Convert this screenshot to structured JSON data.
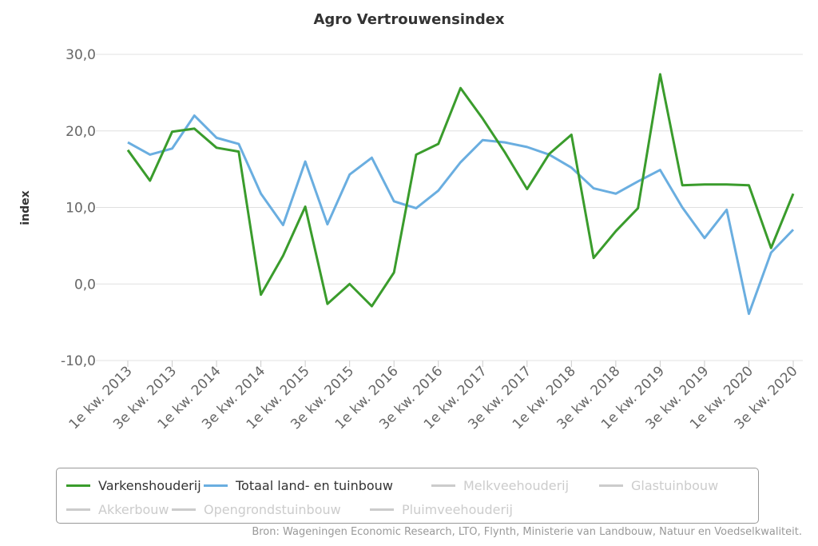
{
  "chart_data": {
    "type": "line",
    "title": "Agro Vertrouwensindex",
    "ylabel": "index",
    "xlabel": "",
    "ylim": [
      -10,
      30
    ],
    "yticks": [
      "30,0",
      "20,0",
      "10,0",
      "0,0",
      "-10,0"
    ],
    "ytick_values": [
      30,
      20,
      10,
      0,
      -10
    ],
    "grid": true,
    "x_tick_labels": [
      "1e kw. 2013",
      "3e kw. 2013",
      "1e kw. 2014",
      "3e kw. 2014",
      "1e kw. 2015",
      "3e kw. 2015",
      "1e kw. 2016",
      "3e kw. 2016",
      "1e kw. 2017",
      "3e kw. 2017",
      "1e kw. 2018",
      "3e kw. 2018",
      "1e kw. 2019",
      "3e kw. 2019",
      "1e kw. 2020",
      "3e kw. 2020"
    ],
    "n_points": 31,
    "series": [
      {
        "name": "Varkenshouderij",
        "color": "#3a9c2c",
        "visible": true,
        "values": [
          17.5,
          13.5,
          19.9,
          20.3,
          17.8,
          17.3,
          -1.4,
          3.7,
          10.1,
          -2.6,
          0.0,
          -2.9,
          1.5,
          16.9,
          18.3,
          25.6,
          21.6,
          17.2,
          12.4,
          17.0,
          19.5,
          3.4,
          6.9,
          9.9,
          27.4,
          12.9,
          13.0,
          13.0,
          12.9,
          4.7,
          11.8
        ]
      },
      {
        "name": "Totaal land- en tuinbouw",
        "color": "#6aaee0",
        "visible": true,
        "values": [
          18.5,
          16.9,
          17.7,
          22.0,
          19.1,
          18.3,
          11.8,
          7.7,
          16.0,
          7.8,
          14.3,
          16.5,
          10.8,
          9.9,
          12.2,
          15.9,
          18.8,
          18.5,
          17.9,
          16.9,
          15.2,
          12.5,
          11.8,
          13.4,
          14.9,
          10.0,
          6.0,
          9.7,
          -3.9,
          4.1,
          7.1
        ]
      },
      {
        "name": "Melkveehouderij",
        "color": "#cccccc",
        "visible": false
      },
      {
        "name": "Glastuinbouw",
        "color": "#cccccc",
        "visible": false
      },
      {
        "name": "Akkerbouw",
        "color": "#cccccc",
        "visible": false
      },
      {
        "name": "Opengrondstuinbouw",
        "color": "#cccccc",
        "visible": false
      },
      {
        "name": "Pluimveehouderij",
        "color": "#cccccc",
        "visible": false
      }
    ],
    "legend_position": "bottom"
  },
  "source": "Bron: Wageningen Economic Research, LTO, Flynth, Ministerie van Landbouw, Natuur en Voedselkwaliteit."
}
